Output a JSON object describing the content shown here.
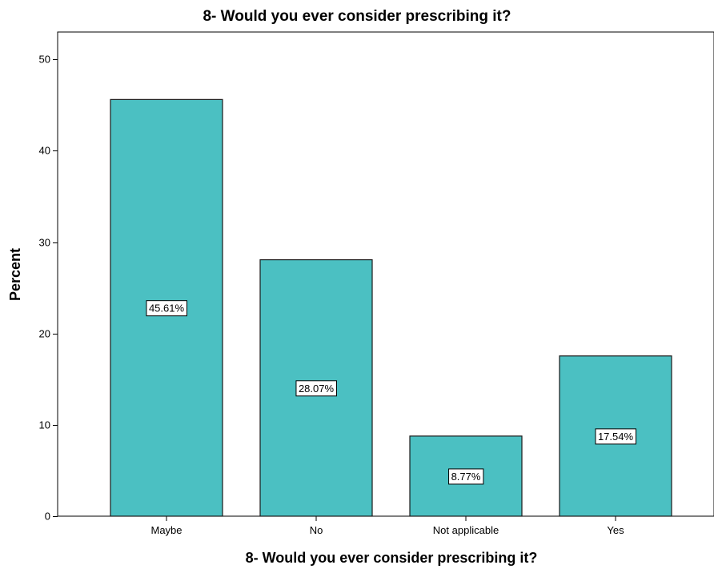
{
  "chart_data": {
    "type": "bar",
    "title": "8- Would you ever consider prescribing it?",
    "xlabel": "8- Would you ever consider prescribing it?",
    "ylabel": "Percent",
    "categories": [
      "Maybe",
      "No",
      "Not applicable",
      "Yes"
    ],
    "values": [
      45.61,
      28.07,
      8.77,
      17.54
    ],
    "data_labels": [
      "45.61%",
      "28.07%",
      "8.77%",
      "17.54%"
    ],
    "ylim": [
      0,
      53
    ],
    "yticks": [
      0,
      10,
      20,
      30,
      40,
      50
    ],
    "grid": false,
    "colors": {
      "bar_fill": "#4BC0C2",
      "bar_stroke": "#1a1a1a",
      "axis": "#000000",
      "label_box_fill": "#ffffff",
      "label_box_stroke": "#000000"
    }
  }
}
